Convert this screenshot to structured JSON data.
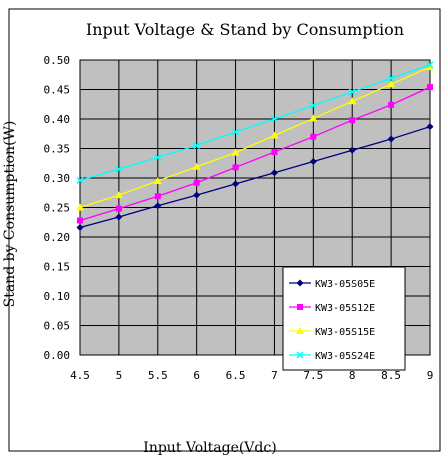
{
  "chart_data": {
    "type": "line",
    "title": "Input Voltage & Stand by Consumption",
    "xlabel": "Input Voltage(Vdc)",
    "ylabel": "Stand by Consumption(W)",
    "x": [
      4.5,
      5,
      5.5,
      6,
      6.5,
      7,
      7.5,
      8,
      8.5,
      9
    ],
    "x_tick_labels": [
      "4.5",
      "5",
      "5.5",
      "6",
      "6.5",
      "7",
      "7.5",
      "8",
      "8.5",
      "9"
    ],
    "y_tick_labels": [
      "0.00",
      "0.05",
      "0.10",
      "0.15",
      "0.20",
      "0.25",
      "0.30",
      "0.35",
      "0.40",
      "0.45",
      "0.50"
    ],
    "xlim": [
      4.5,
      9
    ],
    "ylim": [
      0,
      0.5
    ],
    "grid": true,
    "legend_position": "bottom-right",
    "plot_background": "#c0c0c0",
    "series": [
      {
        "name": "KW3-05S05E",
        "color": "#000080",
        "marker": "diamond",
        "values": [
          0.216,
          0.234,
          0.253,
          0.271,
          0.29,
          0.309,
          0.328,
          0.347,
          0.366,
          0.387
        ]
      },
      {
        "name": "KW3-05S12E",
        "color": "#ff00ff",
        "marker": "square",
        "values": [
          0.228,
          0.248,
          0.269,
          0.292,
          0.318,
          0.344,
          0.37,
          0.398,
          0.424,
          0.454
        ]
      },
      {
        "name": "KW3-05S15E",
        "color": "#ffff00",
        "marker": "triangle",
        "values": [
          0.25,
          0.271,
          0.295,
          0.319,
          0.343,
          0.372,
          0.401,
          0.43,
          0.459,
          0.488
        ]
      },
      {
        "name": "KW3-05S24E",
        "color": "#00ffff",
        "marker": "x",
        "values": [
          0.296,
          0.315,
          0.335,
          0.355,
          0.378,
          0.4,
          0.423,
          0.446,
          0.469,
          0.492
        ]
      }
    ]
  }
}
